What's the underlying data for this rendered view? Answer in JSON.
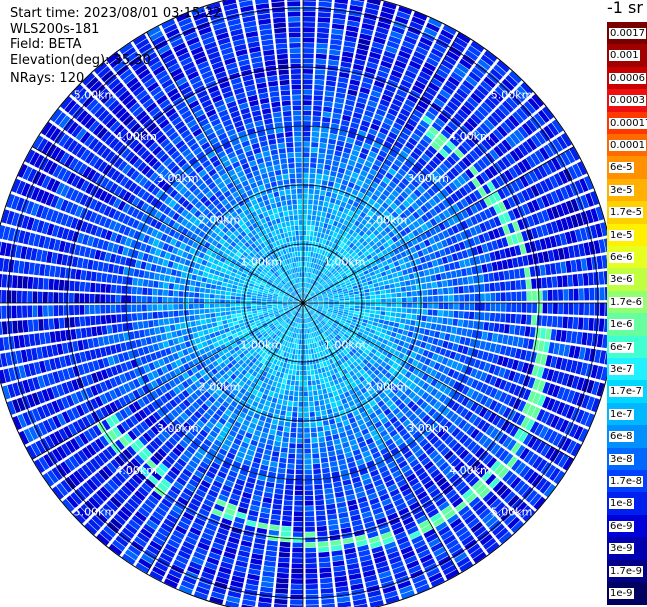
{
  "info": {
    "start_time": "Start time: 2023/08/01 03:15:22",
    "instrument": "WLS200s-181",
    "field": "Field: BETA",
    "elevation": "Elevation(deg): 35.30",
    "nrays": "NRays: 120"
  },
  "colorbar": {
    "unit_label": "-1 sr",
    "labels": [
      "0.0017",
      "0.001",
      "0.0006",
      "0.0003",
      "0.00017",
      "0.0001",
      "6e-5",
      "3e-5",
      "1.7e-5",
      "1e-5",
      "6e-6",
      "3e-6",
      "1.7e-6",
      "1e-6",
      "6e-7",
      "3e-7",
      "1.7e-7",
      "1e-7",
      "6e-8",
      "3e-8",
      "1.7e-8",
      "1e-8",
      "6e-9",
      "3e-9",
      "1.7e-9",
      "1e-9"
    ],
    "colors": [
      "#7a0000",
      "#a00000",
      "#c80000",
      "#ee1010",
      "#ff3800",
      "#ff6a00",
      "#ff9000",
      "#ffb000",
      "#ffd000",
      "#fff000",
      "#e6ff20",
      "#c0ff40",
      "#90ff70",
      "#66ffa0",
      "#40ffd0",
      "#20f0ff",
      "#00d8ff",
      "#00b8ff",
      "#0090ff",
      "#0068ff",
      "#0040ff",
      "#0020f0",
      "#0000d8",
      "#0000b0",
      "#000088",
      "#000060"
    ]
  },
  "chart_data": {
    "type": "heatmap",
    "projection": "polar-ppi",
    "field": "BETA",
    "rays": 120,
    "range_rings_km": [
      1,
      2,
      3,
      4,
      5
    ],
    "range_ring_labels": [
      "1.00km",
      "2.00km",
      "3.00km",
      "4.00km",
      "5.00km"
    ],
    "max_range_km": 5.3,
    "color_scale": "log",
    "value_range": [
      1e-09,
      0.0017
    ],
    "features": {
      "near_field_level": "1e-7",
      "far_field_level": "1e-8",
      "enhanced_arc_level": "1e-6"
    }
  }
}
